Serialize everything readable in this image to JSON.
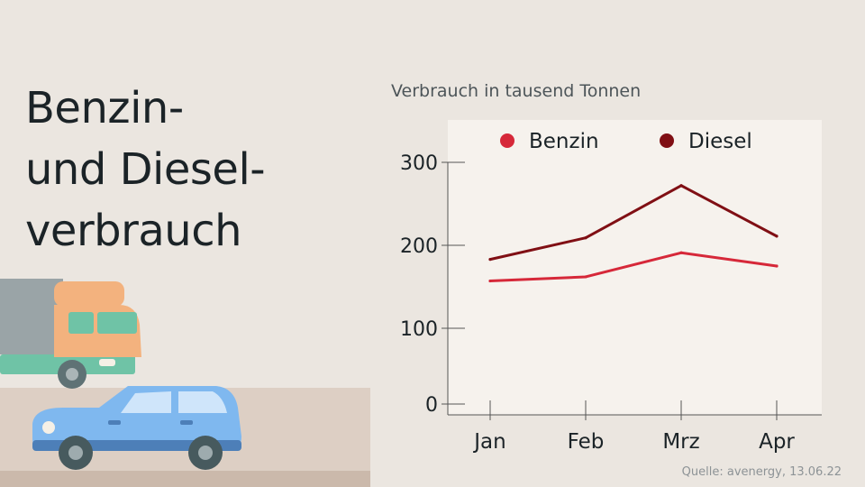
{
  "headline": [
    "Benzin-",
    "und Diesel-",
    "verbrauch"
  ],
  "source": "Quelle: avenergy, 13.06.22",
  "chart_data": {
    "type": "line",
    "subtitle": "Verbrauch in tausend Tonnen",
    "categories": [
      "Jan",
      "Feb",
      "Mrz",
      "Apr"
    ],
    "series": [
      {
        "name": "Benzin",
        "color": "#d62839",
        "values": [
          157,
          162,
          191,
          175
        ]
      },
      {
        "name": "Diesel",
        "color": "#800f14",
        "values": [
          183,
          209,
          272,
          211
        ]
      }
    ],
    "yticks": [
      0,
      100,
      200,
      300
    ],
    "ylim": [
      0,
      335
    ],
    "grid": false,
    "legend": "top",
    "plot_background": "#f6f2ed"
  },
  "illustration": {
    "icons": [
      "truck-icon",
      "car-icon"
    ]
  }
}
